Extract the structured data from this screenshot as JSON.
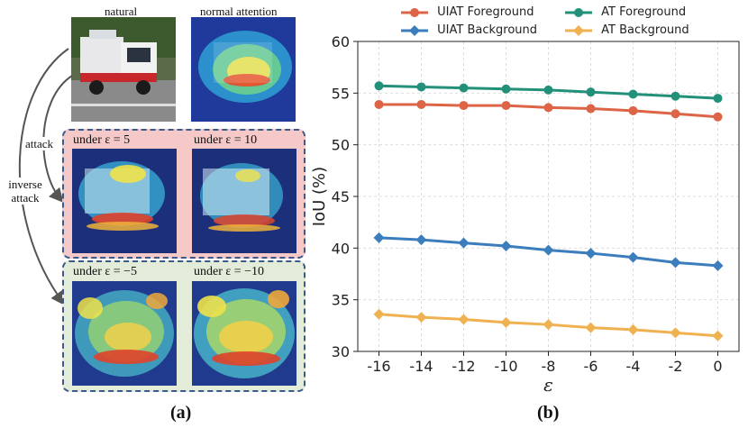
{
  "left_panel": {
    "label_natural": "natural",
    "label_normal_attention": "normal attention",
    "attack_label": "attack",
    "inverse_attack_label": "inverse attack",
    "conditions": {
      "pos5": "under ε = 5",
      "pos10": "under ε = 10",
      "neg5": "under ε = −5",
      "neg10": "under ε = −10"
    },
    "caption": "(a)"
  },
  "right_panel": {
    "caption": "(b)"
  },
  "colors": {
    "uiat_fg": "#dd6447",
    "uiat_bg": "#3b7dbd",
    "at_fg": "#23917a",
    "at_bg": "#f0b150",
    "panel_border": "#3a5a8c"
  },
  "chart_data": {
    "type": "line",
    "xlabel": "ε",
    "ylabel": "IoU (%)",
    "x": [
      -16,
      -14,
      -12,
      -10,
      -8,
      -6,
      -4,
      -2,
      0
    ],
    "x_tick_labels": [
      "-16",
      "-14",
      "-12",
      "-10",
      "-8",
      "-6",
      "-4",
      "-2",
      "0"
    ],
    "ylim": [
      30,
      60
    ],
    "y_ticks": [
      30,
      35,
      40,
      45,
      50,
      55,
      60
    ],
    "grid": true,
    "legend_position": "top",
    "series": [
      {
        "name": "UIAT Foreground",
        "marker": "circle",
        "color": "#dd6447",
        "values": [
          53.9,
          53.9,
          53.8,
          53.8,
          53.6,
          53.5,
          53.3,
          53.0,
          52.7
        ]
      },
      {
        "name": "AT Foreground",
        "marker": "circle",
        "color": "#23917a",
        "values": [
          55.7,
          55.6,
          55.5,
          55.4,
          55.3,
          55.1,
          54.9,
          54.7,
          54.5
        ]
      },
      {
        "name": "UIAT Background",
        "marker": "diamond",
        "color": "#3b7dbd",
        "values": [
          41.0,
          40.8,
          40.5,
          40.2,
          39.8,
          39.5,
          39.1,
          38.6,
          38.3
        ]
      },
      {
        "name": "AT Background",
        "marker": "diamond",
        "color": "#f0b150",
        "values": [
          33.6,
          33.3,
          33.1,
          32.8,
          32.6,
          32.3,
          32.1,
          31.8,
          31.5
        ]
      }
    ]
  }
}
